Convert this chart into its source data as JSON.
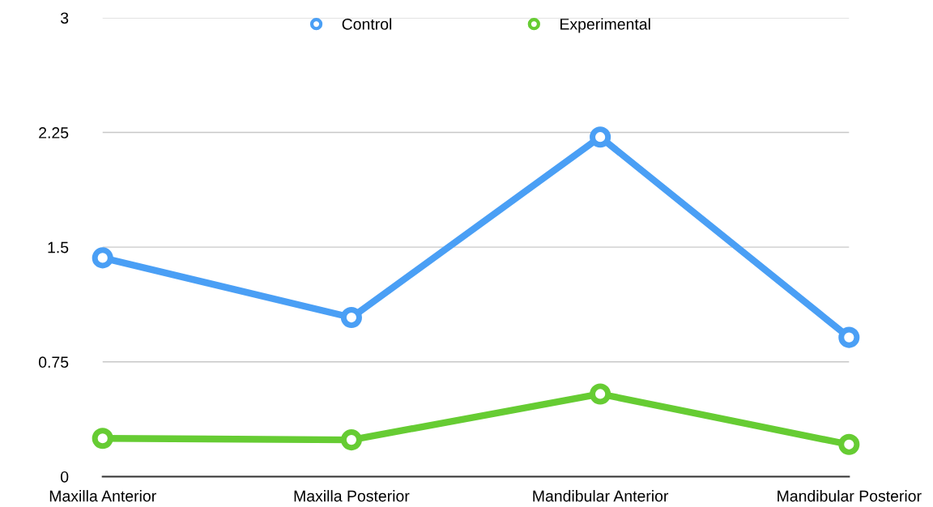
{
  "chart_data": {
    "type": "line",
    "categories": [
      "Maxilla Anterior",
      "Maxilla Posterior",
      "Mandibular Anterior",
      "Mandibular Posterior"
    ],
    "series": [
      {
        "name": "Control",
        "color": "#4a9ff5",
        "values": [
          1.43,
          1.04,
          2.22,
          0.91
        ]
      },
      {
        "name": "Experimental",
        "color": "#66cc33",
        "values": [
          0.25,
          0.24,
          0.54,
          0.21
        ]
      }
    ],
    "ylim": [
      0,
      3
    ],
    "yticks": [
      0,
      {
        "value": 0.75,
        "label": "0.75"
      },
      {
        "value": 1.5,
        "label": "1.5"
      },
      {
        "value": 2.25,
        "label": "2.25"
      },
      3
    ],
    "grid": "y",
    "legend": "top",
    "marker": "circle",
    "line_style": "solid"
  }
}
